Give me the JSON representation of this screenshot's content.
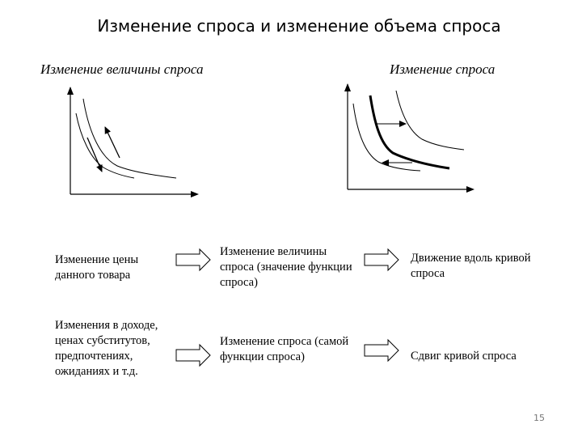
{
  "title": "Изменение спроса и изменение объема спроса",
  "left_graph": {
    "caption": "Изменение величины спроса"
  },
  "right_graph": {
    "caption": "Изменение спроса"
  },
  "rows": [
    {
      "cause": "Изменение цены данного товара",
      "effect": "Изменение величины спроса (значение функции спроса)",
      "result": "Движение вдоль кривой спроса"
    },
    {
      "cause": "Изменения в доходе, ценах субститутов, предпочтениях, ожиданиях и т.д.",
      "effect": "Изменение спроса (самой функции спроса)",
      "result": "Сдвиг кривой спроса"
    }
  ],
  "page_number": "15"
}
